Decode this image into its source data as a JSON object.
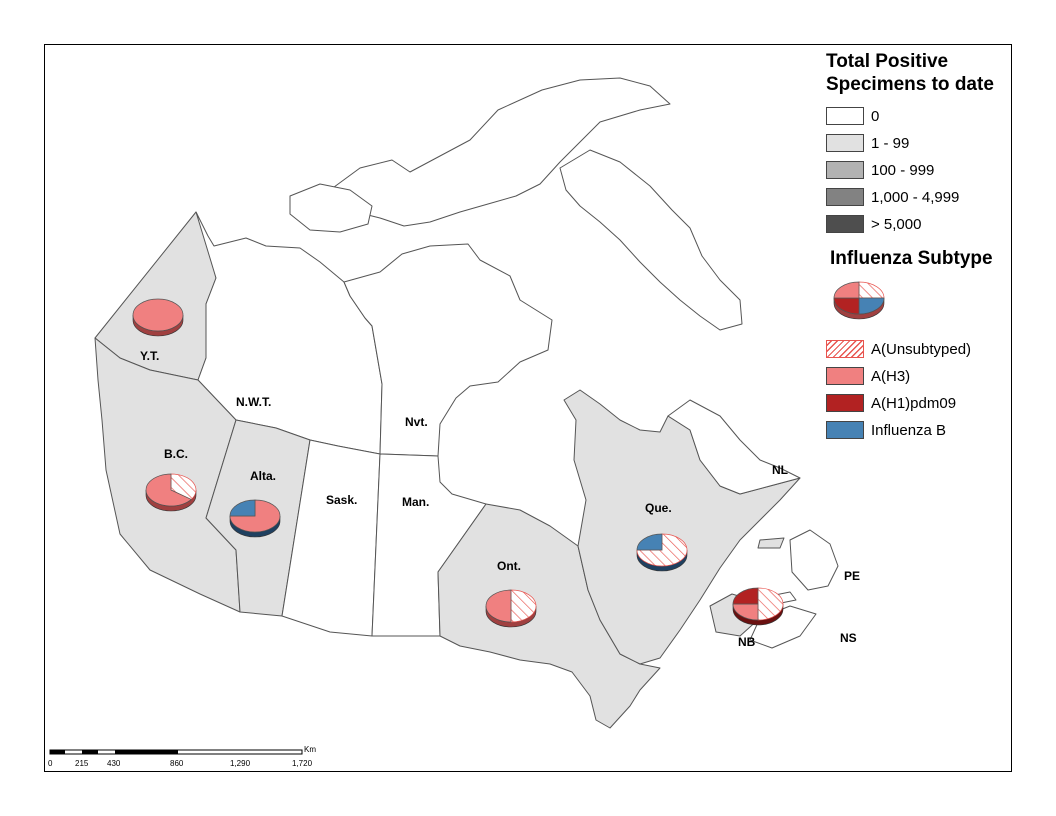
{
  "provinces": {
    "yt": "Y.T.",
    "nwt": "N.W.T.",
    "nvt": "Nvt.",
    "bc": "B.C.",
    "alta": "Alta.",
    "sask": "Sask.",
    "man": "Man.",
    "ont": "Ont.",
    "que": "Que.",
    "nl": "NL",
    "pe": "PE",
    "ns": "NS",
    "nb": "NB"
  },
  "legend": {
    "total_title_line1": "Total Positive",
    "total_title_line2": "Specimens to date",
    "total_classes": [
      {
        "label": "0",
        "color": "#ffffff"
      },
      {
        "label": "1 - 99",
        "color": "#e1e1e1"
      },
      {
        "label": "100 - 999",
        "color": "#b2b2b2"
      },
      {
        "label": "1,000 - 4,999",
        "color": "#828282"
      },
      {
        "label": "> 5,000",
        "color": "#4e4e4e"
      }
    ],
    "subtype_title": "Influenza Subtype",
    "subtypes": [
      {
        "label": "A(Unsubtyped)",
        "color": "#ffffff",
        "pattern": "hatch"
      },
      {
        "label": "A(H3)",
        "color": "#f08080"
      },
      {
        "label": "A(H1)pdm09",
        "color": "#b22222"
      },
      {
        "label": "Influenza B",
        "color": "#4682b4"
      }
    ]
  },
  "province_classes": {
    "yt": "1 - 99",
    "nwt": "0",
    "nvt": "0",
    "bc": "1 - 99",
    "alta": "1 - 99",
    "sask": "0",
    "man": "0",
    "ont": "1 - 99",
    "que": "1 - 99",
    "nl": "0",
    "pe": "0",
    "ns": "0",
    "nb": "1 - 99"
  },
  "pie_charts": [
    {
      "province": "Y.T.",
      "slices": [
        {
          "subtype": "A(H3)",
          "share": 1.0
        }
      ]
    },
    {
      "province": "B.C.",
      "slices": [
        {
          "subtype": "A(Unsubtyped)",
          "share": 0.35
        },
        {
          "subtype": "A(H3)",
          "share": 0.65
        }
      ]
    },
    {
      "province": "Alta.",
      "slices": [
        {
          "subtype": "A(H3)",
          "share": 0.75
        },
        {
          "subtype": "Influenza B",
          "share": 0.25
        }
      ]
    },
    {
      "province": "Ont.",
      "slices": [
        {
          "subtype": "A(Unsubtyped)",
          "share": 0.5
        },
        {
          "subtype": "A(H3)",
          "share": 0.5
        }
      ]
    },
    {
      "province": "Que.",
      "slices": [
        {
          "subtype": "A(Unsubtyped)",
          "share": 0.75
        },
        {
          "subtype": "Influenza B",
          "share": 0.25
        }
      ]
    },
    {
      "province": "NB",
      "slices": [
        {
          "subtype": "A(Unsubtyped)",
          "share": 0.5
        },
        {
          "subtype": "A(H3)",
          "share": 0.25
        },
        {
          "subtype": "A(H1)pdm09",
          "share": 0.25
        }
      ]
    }
  ],
  "scale_bar": {
    "unit": "Km",
    "ticks": [
      "0",
      "215",
      "430",
      "860",
      "1,290",
      "1,720"
    ]
  }
}
